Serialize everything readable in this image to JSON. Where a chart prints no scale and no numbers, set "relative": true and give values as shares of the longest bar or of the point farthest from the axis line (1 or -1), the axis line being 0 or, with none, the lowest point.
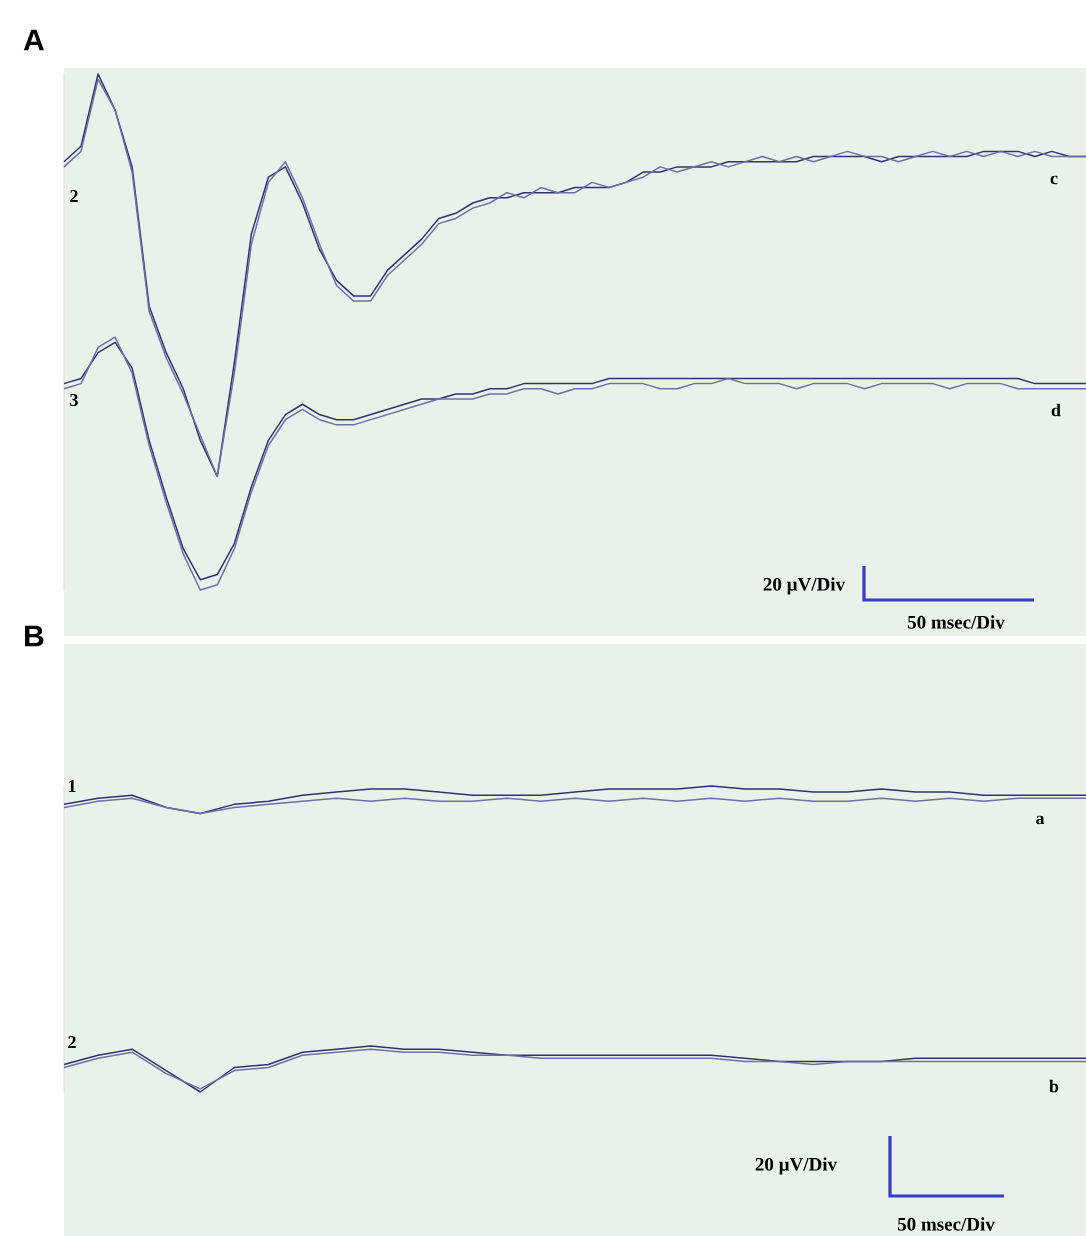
{
  "chart_data": [
    {
      "type": "line",
      "title": "A",
      "relative": true,
      "categories": [
        null,
        null,
        null,
        null,
        null,
        null,
        null,
        null,
        null,
        null,
        null,
        null,
        null,
        null,
        null,
        null,
        null,
        null,
        null,
        null,
        null,
        null,
        null,
        null,
        null,
        null,
        null,
        null,
        null,
        null,
        null,
        null,
        null,
        null,
        null,
        null,
        null,
        null,
        null,
        null,
        null,
        null,
        null,
        null,
        null,
        null,
        null,
        null,
        null,
        null,
        null,
        null,
        null,
        null,
        null,
        null,
        null,
        null,
        null,
        null,
        null
      ],
      "series": [
        {
          "color": "#2e3370",
          "values": [
            0.83,
            0.86,
            1.0,
            0.93,
            0.82,
            0.55,
            0.46,
            0.39,
            0.29,
            0.22,
            0.44,
            0.69,
            0.8,
            0.82,
            0.75,
            0.66,
            0.6,
            0.57,
            0.57,
            0.62,
            0.65,
            0.68,
            0.72,
            0.73,
            0.75,
            0.76,
            0.76,
            0.77,
            0.77,
            0.77,
            0.78,
            0.78,
            0.78,
            0.79,
            0.81,
            0.81,
            0.82,
            0.82,
            0.82,
            0.83,
            0.83,
            0.83,
            0.83,
            0.83,
            0.84,
            0.84,
            0.84,
            0.84,
            0.83,
            0.84,
            0.84,
            0.84,
            0.84,
            0.84,
            0.85,
            0.85,
            0.85,
            0.84,
            0.85,
            0.84,
            0.84
          ]
        },
        {
          "color": "#6b70a8",
          "values": [
            0.82,
            0.85,
            0.99,
            0.93,
            0.81,
            0.54,
            0.45,
            0.38,
            0.3,
            0.22,
            0.42,
            0.67,
            0.79,
            0.83,
            0.76,
            0.67,
            0.59,
            0.56,
            0.56,
            0.61,
            0.64,
            0.67,
            0.71,
            0.72,
            0.74,
            0.75,
            0.77,
            0.76,
            0.78,
            0.77,
            0.77,
            0.79,
            0.78,
            0.79,
            0.8,
            0.82,
            0.81,
            0.82,
            0.83,
            0.82,
            0.83,
            0.84,
            0.83,
            0.84,
            0.83,
            0.84,
            0.85,
            0.84,
            0.84,
            0.83,
            0.84,
            0.85,
            0.84,
            0.85,
            0.84,
            0.85,
            0.84,
            0.85,
            0.84,
            0.84,
            0.84
          ]
        },
        {
          "color": "#2e3370",
          "values": [
            0.4,
            0.41,
            0.46,
            0.48,
            0.43,
            0.29,
            0.18,
            0.08,
            0.02,
            0.03,
            0.09,
            0.2,
            0.29,
            0.34,
            0.36,
            0.34,
            0.33,
            0.33,
            0.34,
            0.35,
            0.36,
            0.37,
            0.37,
            0.38,
            0.38,
            0.39,
            0.39,
            0.4,
            0.4,
            0.4,
            0.4,
            0.4,
            0.41,
            0.41,
            0.41,
            0.41,
            0.41,
            0.41,
            0.41,
            0.41,
            0.41,
            0.41,
            0.41,
            0.41,
            0.41,
            0.41,
            0.41,
            0.41,
            0.41,
            0.41,
            0.41,
            0.41,
            0.41,
            0.41,
            0.41,
            0.41,
            0.41,
            0.4,
            0.4,
            0.4,
            0.4
          ]
        },
        {
          "color": "#6b70a8",
          "values": [
            0.39,
            0.4,
            0.47,
            0.49,
            0.42,
            0.28,
            0.17,
            0.07,
            0.0,
            0.01,
            0.08,
            0.19,
            0.28,
            0.33,
            0.35,
            0.33,
            0.32,
            0.32,
            0.33,
            0.34,
            0.35,
            0.36,
            0.37,
            0.37,
            0.37,
            0.38,
            0.38,
            0.39,
            0.39,
            0.38,
            0.39,
            0.39,
            0.4,
            0.4,
            0.4,
            0.39,
            0.39,
            0.4,
            0.4,
            0.41,
            0.4,
            0.4,
            0.4,
            0.39,
            0.4,
            0.4,
            0.4,
            0.39,
            0.4,
            0.4,
            0.4,
            0.4,
            0.39,
            0.4,
            0.4,
            0.4,
            0.39,
            0.39,
            0.39,
            0.39,
            0.39
          ]
        }
      ],
      "annotations": [
        "2",
        "3",
        "c",
        "d",
        "20 µV/Div",
        "50 msec/Div"
      ]
    },
    {
      "type": "line",
      "title": "B",
      "relative": true,
      "categories": [
        null,
        null,
        null,
        null,
        null,
        null,
        null,
        null,
        null,
        null,
        null,
        null,
        null,
        null,
        null,
        null,
        null,
        null,
        null,
        null,
        null,
        null,
        null,
        null,
        null,
        null,
        null,
        null,
        null,
        null,
        null
      ],
      "series": [
        {
          "color": "#2e3370",
          "values": [
            0.94,
            0.96,
            0.97,
            0.93,
            0.91,
            0.94,
            0.95,
            0.97,
            0.98,
            0.99,
            0.99,
            0.98,
            0.97,
            0.97,
            0.97,
            0.98,
            0.99,
            0.99,
            0.99,
            1.0,
            0.99,
            0.99,
            0.98,
            0.98,
            0.99,
            0.98,
            0.98,
            0.97,
            0.97,
            0.97,
            0.97
          ]
        },
        {
          "color": "#6b70a8",
          "values": [
            0.93,
            0.95,
            0.96,
            0.93,
            0.91,
            0.93,
            0.94,
            0.95,
            0.96,
            0.95,
            0.96,
            0.95,
            0.95,
            0.96,
            0.95,
            0.96,
            0.95,
            0.96,
            0.95,
            0.96,
            0.95,
            0.96,
            0.95,
            0.95,
            0.96,
            0.95,
            0.96,
            0.95,
            0.96,
            0.96,
            0.96
          ]
        },
        {
          "color": "#2e3370",
          "values": [
            0.09,
            0.12,
            0.14,
            0.07,
            0.0,
            0.08,
            0.09,
            0.13,
            0.14,
            0.15,
            0.14,
            0.14,
            0.13,
            0.12,
            0.12,
            0.12,
            0.12,
            0.12,
            0.12,
            0.12,
            0.11,
            0.1,
            0.1,
            0.1,
            0.1,
            0.11,
            0.11,
            0.11,
            0.11,
            0.11,
            0.11
          ]
        },
        {
          "color": "#6b70a8",
          "values": [
            0.08,
            0.11,
            0.13,
            0.06,
            0.01,
            0.07,
            0.08,
            0.12,
            0.13,
            0.14,
            0.13,
            0.13,
            0.12,
            0.12,
            0.11,
            0.11,
            0.11,
            0.11,
            0.11,
            0.11,
            0.1,
            0.1,
            0.09,
            0.1,
            0.1,
            0.1,
            0.1,
            0.1,
            0.1,
            0.1,
            0.1
          ]
        }
      ],
      "annotations": [
        "1",
        "2",
        "a",
        "b",
        "20 µV/Div",
        "50 msec/Div"
      ]
    }
  ]
}
